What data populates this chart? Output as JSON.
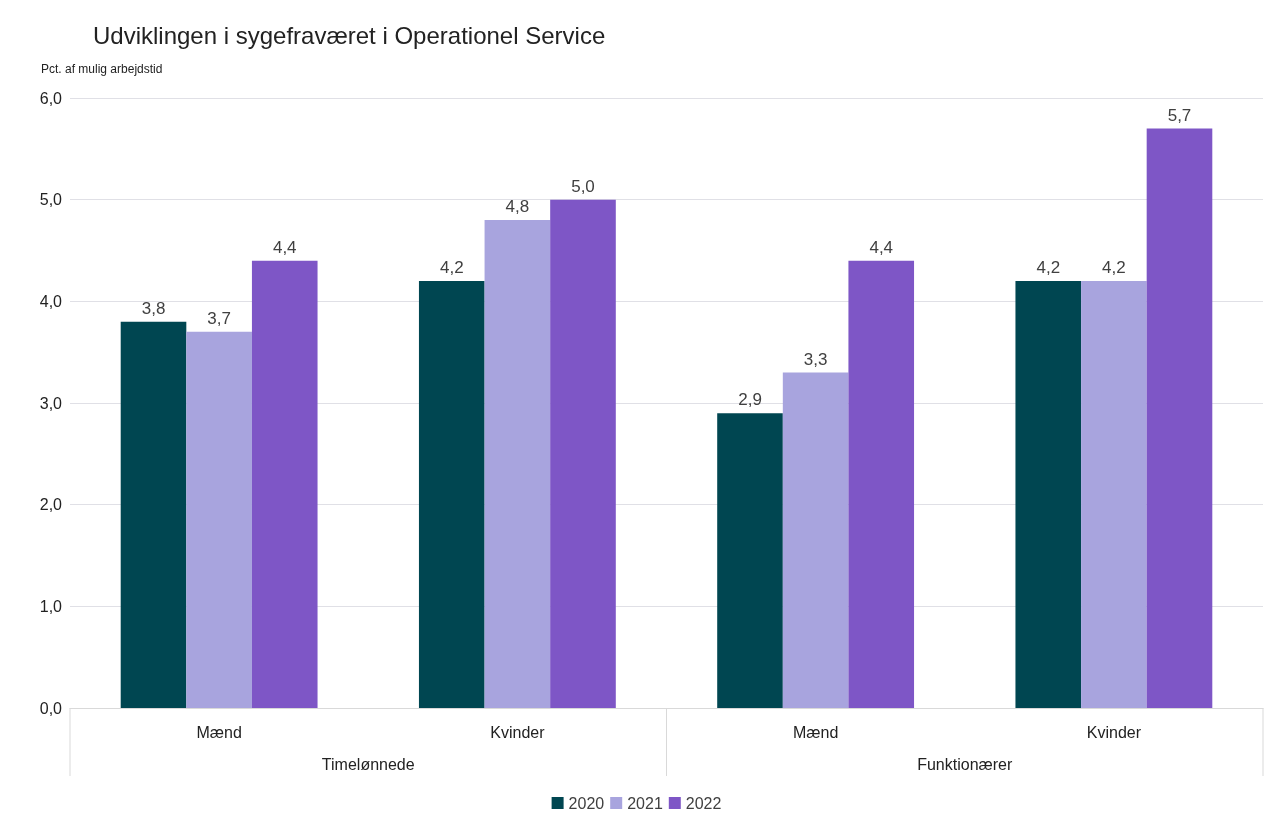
{
  "chart_data": {
    "type": "bar",
    "title": "Udviklingen i sygefraværet i Operationel Service",
    "ylabel": "Pct. af mulig arbejdstid",
    "categories": [
      "Mænd",
      "Kvinder",
      "Mænd",
      "Kvinder"
    ],
    "annotations": [
      "Timelønnede",
      "Funktionærer"
    ],
    "series": [
      {
        "name": "2020",
        "color": "#004651",
        "values": [
          3.8,
          4.2,
          2.9,
          4.2
        ],
        "value_labels": [
          "3,8",
          "4,2",
          "2,9",
          "4,2"
        ]
      },
      {
        "name": "2021",
        "color": "#a8a4de",
        "values": [
          3.7,
          4.8,
          3.3,
          4.2
        ],
        "value_labels": [
          "3,7",
          "4,8",
          "3,3",
          "4,2"
        ]
      },
      {
        "name": "2022",
        "color": "#7e56c6",
        "values": [
          4.4,
          5.0,
          4.4,
          5.7
        ],
        "value_labels": [
          "4,4",
          "5,0",
          "4,4",
          "5,7"
        ]
      }
    ],
    "ylim": [
      0,
      6
    ],
    "yticks": [
      {
        "value": 0,
        "label": "0,0"
      },
      {
        "value": 1,
        "label": "1,0"
      },
      {
        "value": 2,
        "label": "2,0"
      },
      {
        "value": 3,
        "label": "3,0"
      },
      {
        "value": 4,
        "label": "4,0"
      },
      {
        "value": 5,
        "label": "5,0"
      },
      {
        "value": 6,
        "label": "6,0"
      }
    ],
    "grid": "y",
    "legend": "bottom"
  }
}
